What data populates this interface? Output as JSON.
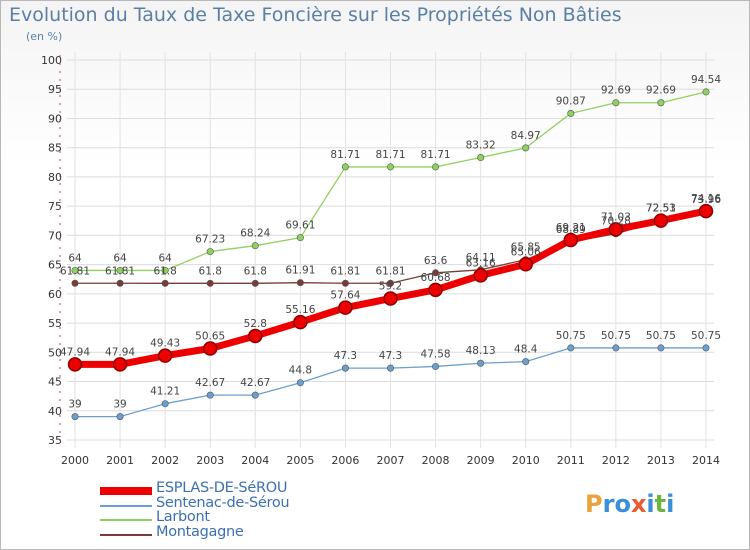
{
  "title": "Evolution du Taux de Taxe Foncière sur les Propriétés Non Bâties",
  "unit": "(en %)",
  "logo": {
    "text": "Proxiti",
    "colors": [
      "#e8a33d",
      "#3b8fd8",
      "#3b8fd8",
      "#e85c2d",
      "#3b8fd8",
      "#6cb33f",
      "#3b8fd8"
    ]
  },
  "chart_data": {
    "type": "line",
    "title": "Evolution du Taux de Taxe Foncière sur les Propriétés Non Bâties",
    "ylabel": "(en %)",
    "xlabel": "",
    "ylim": [
      35,
      100
    ],
    "yticks": [
      35,
      40,
      45,
      50,
      55,
      60,
      65,
      70,
      75,
      80,
      85,
      90,
      95,
      100
    ],
    "grid": true,
    "legend": "bottom-left",
    "categories": [
      "2000",
      "2001",
      "2002",
      "2003",
      "2004",
      "2005",
      "2006",
      "2007",
      "2008",
      "2009",
      "2010",
      "2011",
      "2012",
      "2013",
      "2014"
    ],
    "series": [
      {
        "name": "ESPLAS-DE-SéROU",
        "color": "#ee0000",
        "bold": true,
        "values": [
          47.94,
          47.94,
          49.43,
          50.65,
          52.8,
          55.16,
          57.64,
          59.2,
          60.68,
          63.16,
          65.06,
          69.21,
          71.03,
          72.53,
          74.16
        ],
        "labels": [
          "47.94",
          "47.94",
          "49.43",
          "50.65",
          "52.8",
          "55.16",
          "57.64",
          "59.2",
          "60.68",
          "63.16",
          "65.06",
          "69.21",
          "71.03",
          "72.53",
          "74.16"
        ]
      },
      {
        "name": "Sentenac-de-Sérou",
        "color": "#6b9fce",
        "values": [
          39,
          39,
          41.21,
          42.67,
          42.67,
          44.8,
          47.3,
          47.3,
          47.58,
          48.13,
          48.4,
          50.75,
          50.75,
          50.75,
          50.75
        ],
        "labels": [
          "39",
          "39",
          "41.21",
          "42.67",
          "42.67",
          "44.8",
          "47.3",
          "47.3",
          "47.58",
          "48.13",
          "48.4",
          "50.75",
          "50.75",
          "50.75",
          "50.75"
        ]
      },
      {
        "name": "Larbont",
        "color": "#8fd160",
        "values": [
          64,
          64,
          64,
          67.23,
          68.24,
          69.61,
          81.71,
          81.71,
          81.71,
          83.32,
          84.97,
          90.87,
          92.69,
          92.69,
          94.54
        ],
        "labels": [
          "64",
          "64",
          "64",
          "67.23",
          "68.24",
          "69.61",
          "81.71",
          "81.71",
          "81.71",
          "83.32",
          "84.97",
          "90.87",
          "92.69",
          "92.69",
          "94.54"
        ]
      },
      {
        "name": "Montagagne",
        "color": "#7a3b3b",
        "values": [
          61.81,
          61.81,
          61.8,
          61.8,
          61.8,
          61.91,
          61.81,
          61.81,
          63.6,
          64.11,
          65.85,
          68.89,
          70.28,
          72.51,
          73.96
        ],
        "labels": [
          "61.81",
          "61.81",
          "61.8",
          "61.8",
          "61.8",
          "61.91",
          "61.81",
          "61.81",
          "63.6",
          "64.11",
          "65.85",
          "68.89",
          "70.28",
          "72.51",
          "73.96"
        ]
      }
    ]
  }
}
